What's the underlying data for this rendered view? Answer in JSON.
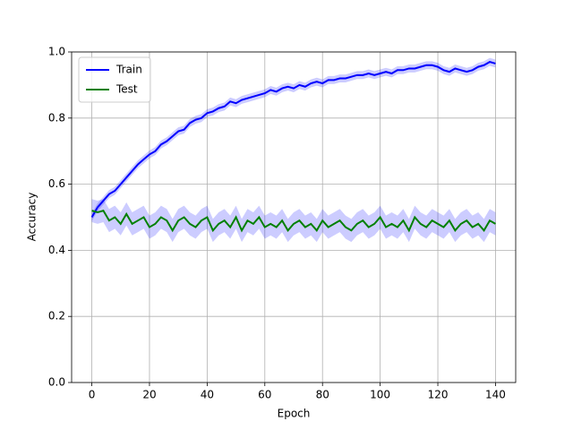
{
  "chart_data": {
    "type": "line",
    "xlabel": "Epoch",
    "ylabel": "Accuracy",
    "x": [
      0,
      2,
      4,
      6,
      8,
      10,
      12,
      14,
      16,
      18,
      20,
      22,
      24,
      26,
      28,
      30,
      32,
      34,
      36,
      38,
      40,
      42,
      44,
      46,
      48,
      50,
      52,
      54,
      56,
      58,
      60,
      62,
      64,
      66,
      68,
      70,
      72,
      74,
      76,
      78,
      80,
      82,
      84,
      86,
      88,
      90,
      92,
      94,
      96,
      98,
      100,
      102,
      104,
      106,
      108,
      110,
      112,
      114,
      116,
      118,
      120,
      122,
      124,
      126,
      128,
      130,
      132,
      134,
      136,
      138,
      140
    ],
    "series": [
      {
        "name": "Train",
        "color": "#0000ff",
        "band_color": "#0000ff",
        "spread": 0.012,
        "values": [
          0.5,
          0.53,
          0.55,
          0.57,
          0.58,
          0.6,
          0.62,
          0.64,
          0.66,
          0.675,
          0.69,
          0.7,
          0.72,
          0.73,
          0.745,
          0.76,
          0.765,
          0.785,
          0.795,
          0.8,
          0.815,
          0.82,
          0.83,
          0.835,
          0.85,
          0.845,
          0.855,
          0.86,
          0.865,
          0.87,
          0.875,
          0.885,
          0.88,
          0.89,
          0.895,
          0.89,
          0.9,
          0.895,
          0.905,
          0.91,
          0.905,
          0.915,
          0.915,
          0.92,
          0.92,
          0.925,
          0.93,
          0.93,
          0.935,
          0.93,
          0.935,
          0.94,
          0.935,
          0.945,
          0.945,
          0.95,
          0.95,
          0.955,
          0.96,
          0.96,
          0.955,
          0.945,
          0.94,
          0.95,
          0.945,
          0.94,
          0.945,
          0.955,
          0.96,
          0.97,
          0.965
        ]
      },
      {
        "name": "Test",
        "color": "#008000",
        "band_color": "#0000ff",
        "spread": 0.035,
        "values": [
          0.52,
          0.515,
          0.52,
          0.49,
          0.5,
          0.48,
          0.51,
          0.48,
          0.49,
          0.5,
          0.47,
          0.48,
          0.5,
          0.49,
          0.46,
          0.49,
          0.5,
          0.48,
          0.47,
          0.49,
          0.5,
          0.46,
          0.48,
          0.49,
          0.47,
          0.5,
          0.46,
          0.49,
          0.48,
          0.5,
          0.47,
          0.48,
          0.47,
          0.49,
          0.46,
          0.48,
          0.49,
          0.47,
          0.48,
          0.46,
          0.49,
          0.47,
          0.48,
          0.49,
          0.47,
          0.46,
          0.48,
          0.49,
          0.47,
          0.48,
          0.5,
          0.47,
          0.48,
          0.47,
          0.49,
          0.46,
          0.5,
          0.48,
          0.47,
          0.49,
          0.48,
          0.47,
          0.49,
          0.46,
          0.48,
          0.49,
          0.47,
          0.48,
          0.46,
          0.49,
          0.48
        ]
      }
    ],
    "xlim": [
      -7,
      147
    ],
    "ylim": [
      0,
      1
    ],
    "xticks": [
      0,
      20,
      40,
      60,
      80,
      100,
      120,
      140
    ],
    "yticks": [
      {
        "value": 0,
        "label": "0.0"
      },
      {
        "value": 0.2,
        "label": "0.2"
      },
      {
        "value": 0.4,
        "label": "0.4"
      },
      {
        "value": 0.6,
        "label": "0.6"
      },
      {
        "value": 0.8,
        "label": "0.8"
      },
      {
        "value": 1,
        "label": "1.0"
      }
    ],
    "grid": true,
    "legend": "upper left"
  }
}
